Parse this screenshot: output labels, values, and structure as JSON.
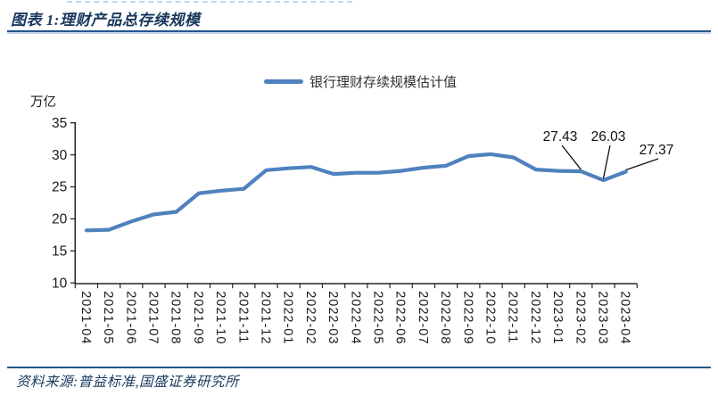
{
  "header": {
    "title": "图表 1:理财产品总存续规模"
  },
  "footer": {
    "source": "资料来源:普益标准,国盛证券研究所"
  },
  "colors": {
    "line": "#4F81BD",
    "axis": "#262626",
    "tick_text": "#1a1a1a",
    "annotation_text": "#111111",
    "title_navy": "#17375D",
    "rule_dark": "#24558C",
    "rule_light": "#C3D6E8"
  },
  "chart_data": {
    "type": "line",
    "title": "",
    "unit_label": "万亿",
    "xlabel": "",
    "ylabel": "万亿",
    "ylim": [
      10,
      35
    ],
    "yticks": [
      10,
      15,
      20,
      25,
      30,
      35
    ],
    "grid": false,
    "legend_position": "top",
    "categories": [
      "2021-04",
      "2021-05",
      "2021-06",
      "2021-07",
      "2021-08",
      "2021-09",
      "2021-10",
      "2021-11",
      "2021-12",
      "2022-01",
      "2022-02",
      "2022-03",
      "2022-04",
      "2022-05",
      "2022-06",
      "2022-07",
      "2022-08",
      "2022-09",
      "2022-10",
      "2022-11",
      "2022-12",
      "2023-01",
      "2023-02",
      "2023-03",
      "2023-04"
    ],
    "series": [
      {
        "name": "银行理财存续规模估计值",
        "values": [
          18.2,
          18.3,
          19.6,
          20.7,
          21.1,
          24.0,
          24.4,
          24.7,
          27.6,
          27.9,
          28.1,
          27.0,
          27.2,
          27.2,
          27.5,
          28.0,
          28.3,
          29.8,
          30.1,
          29.6,
          27.7,
          27.5,
          27.43,
          26.03,
          27.37
        ]
      }
    ],
    "annotations": [
      {
        "label": "27.43",
        "category": "2023-02"
      },
      {
        "label": "26.03",
        "category": "2023-03"
      },
      {
        "label": "27.37",
        "category": "2023-04"
      }
    ]
  }
}
